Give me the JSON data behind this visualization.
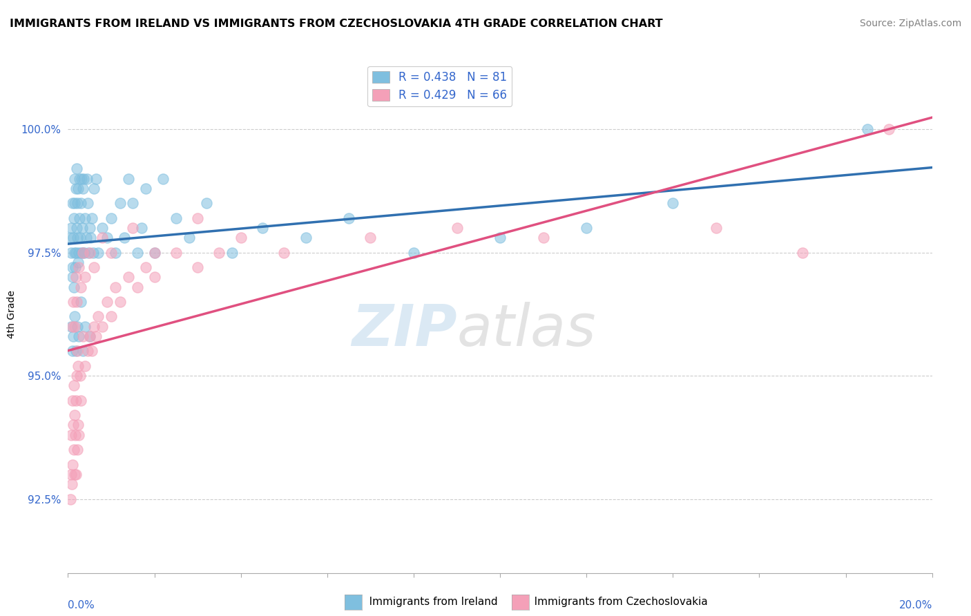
{
  "title": "IMMIGRANTS FROM IRELAND VS IMMIGRANTS FROM CZECHOSLOVAKIA 4TH GRADE CORRELATION CHART",
  "source": "Source: ZipAtlas.com",
  "ylabel": "4th Grade",
  "ytick_vals": [
    92.5,
    95.0,
    97.5,
    100.0
  ],
  "xrange": [
    0.0,
    20.0
  ],
  "yrange": [
    91.0,
    101.5
  ],
  "legend_ireland": "Immigrants from Ireland",
  "legend_czech": "Immigrants from Czechoslovakia",
  "R_ireland": 0.438,
  "N_ireland": 81,
  "R_czech": 0.429,
  "N_czech": 66,
  "color_ireland": "#7fbfdf",
  "color_czech": "#f4a0b8",
  "color_ireland_line": "#3070b0",
  "color_czech_line": "#e05080",
  "ireland_x": [
    0.05,
    0.07,
    0.08,
    0.1,
    0.1,
    0.11,
    0.12,
    0.13,
    0.14,
    0.15,
    0.15,
    0.16,
    0.17,
    0.18,
    0.19,
    0.2,
    0.2,
    0.21,
    0.22,
    0.23,
    0.24,
    0.25,
    0.26,
    0.27,
    0.28,
    0.3,
    0.31,
    0.32,
    0.33,
    0.34,
    0.35,
    0.36,
    0.38,
    0.4,
    0.42,
    0.44,
    0.46,
    0.48,
    0.5,
    0.52,
    0.55,
    0.58,
    0.6,
    0.65,
    0.7,
    0.8,
    0.9,
    1.0,
    1.1,
    1.2,
    1.3,
    1.4,
    1.5,
    1.6,
    1.7,
    1.8,
    2.0,
    2.2,
    2.5,
    2.8,
    3.2,
    3.8,
    4.5,
    5.5,
    6.5,
    8.0,
    10.0,
    12.0,
    14.0,
    0.08,
    0.1,
    0.12,
    0.15,
    0.18,
    0.22,
    0.25,
    0.3,
    0.35,
    0.4,
    0.5,
    18.5
  ],
  "ireland_y": [
    97.8,
    97.5,
    98.0,
    97.2,
    98.5,
    97.0,
    97.8,
    98.2,
    96.8,
    97.5,
    99.0,
    98.5,
    97.2,
    98.8,
    97.5,
    98.0,
    99.2,
    97.8,
    98.5,
    97.3,
    98.8,
    97.5,
    99.0,
    98.2,
    97.8,
    98.5,
    97.5,
    99.0,
    98.0,
    97.5,
    98.8,
    99.0,
    97.5,
    98.2,
    97.8,
    99.0,
    98.5,
    97.5,
    98.0,
    97.8,
    98.2,
    97.5,
    98.8,
    99.0,
    97.5,
    98.0,
    97.8,
    98.2,
    97.5,
    98.5,
    97.8,
    99.0,
    98.5,
    97.5,
    98.0,
    98.8,
    97.5,
    99.0,
    98.2,
    97.8,
    98.5,
    97.5,
    98.0,
    97.8,
    98.2,
    97.5,
    97.8,
    98.0,
    98.5,
    96.0,
    95.5,
    95.8,
    96.2,
    95.5,
    96.0,
    95.8,
    96.5,
    95.5,
    96.0,
    95.8,
    100.0
  ],
  "czech_x": [
    0.05,
    0.07,
    0.08,
    0.09,
    0.1,
    0.11,
    0.12,
    0.13,
    0.14,
    0.15,
    0.16,
    0.17,
    0.18,
    0.19,
    0.2,
    0.21,
    0.22,
    0.23,
    0.24,
    0.25,
    0.28,
    0.3,
    0.35,
    0.4,
    0.45,
    0.5,
    0.55,
    0.6,
    0.65,
    0.7,
    0.8,
    0.9,
    1.0,
    1.1,
    1.2,
    1.4,
    1.6,
    1.8,
    2.0,
    2.5,
    3.0,
    3.5,
    4.0,
    5.0,
    7.0,
    9.0,
    11.0,
    15.0,
    17.0,
    19.0,
    0.1,
    0.12,
    0.15,
    0.18,
    0.2,
    0.25,
    0.3,
    0.35,
    0.4,
    0.5,
    0.6,
    0.8,
    1.0,
    1.5,
    2.0,
    3.0
  ],
  "czech_y": [
    92.5,
    93.0,
    93.8,
    92.8,
    94.5,
    93.2,
    94.0,
    93.5,
    94.8,
    93.0,
    94.2,
    93.8,
    94.5,
    93.0,
    95.0,
    93.5,
    95.5,
    94.0,
    95.2,
    93.8,
    95.0,
    94.5,
    95.8,
    95.2,
    95.5,
    95.8,
    95.5,
    96.0,
    95.8,
    96.2,
    96.0,
    96.5,
    96.2,
    96.8,
    96.5,
    97.0,
    96.8,
    97.2,
    97.0,
    97.5,
    97.2,
    97.5,
    97.8,
    97.5,
    97.8,
    98.0,
    97.8,
    98.0,
    97.5,
    100.0,
    96.0,
    96.5,
    96.0,
    97.0,
    96.5,
    97.2,
    96.8,
    97.5,
    97.0,
    97.5,
    97.2,
    97.8,
    97.5,
    98.0,
    97.5,
    98.2
  ]
}
